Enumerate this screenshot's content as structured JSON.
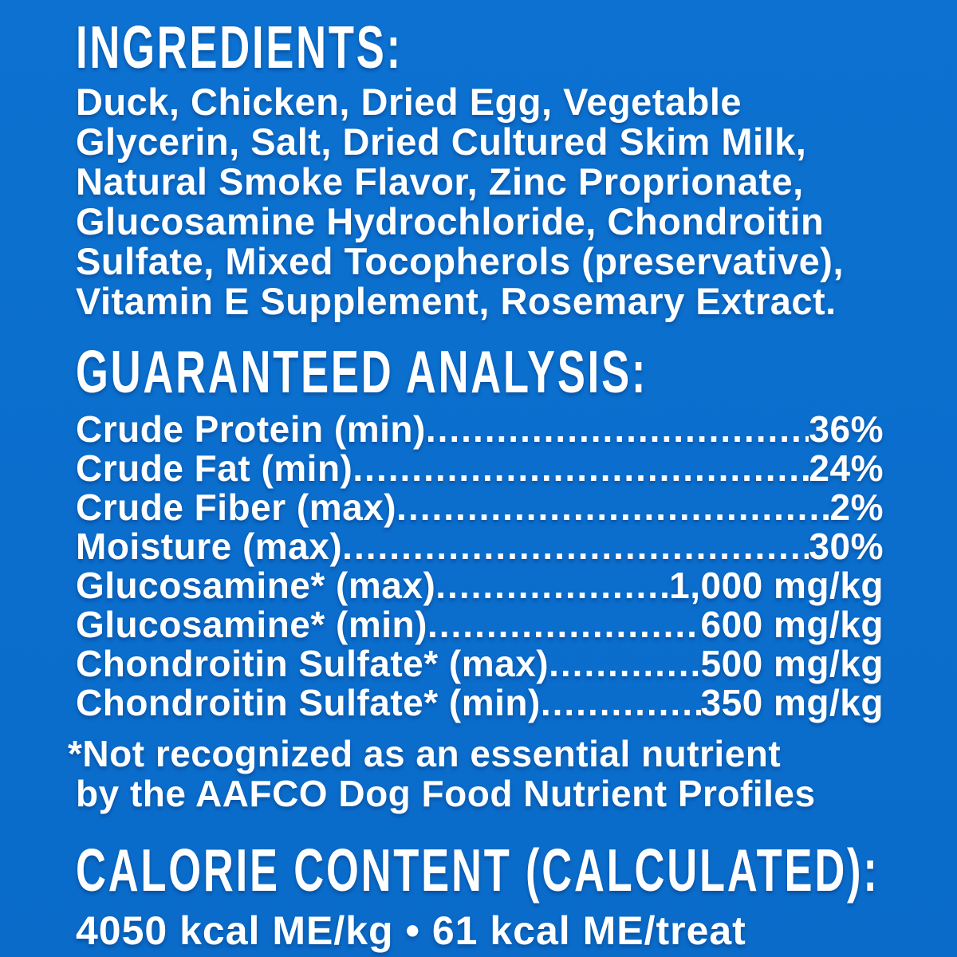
{
  "page": {
    "background_color": "#0b6ecd",
    "text_color": "#ffffff"
  },
  "ingredients": {
    "heading": "INGREDIENTS:",
    "lines": [
      "Duck, Chicken, Dried Egg, Vegetable",
      "Glycerin, Salt, Dried Cultured Skim Milk,",
      "Natural Smoke Flavor, Zinc Proprionate,",
      "Glucosamine Hydrochloride, Chondroitin",
      "Sulfate, Mixed Tocopherols (preservative),",
      "Vitamin E Supplement, Rosemary Extract."
    ]
  },
  "guaranteed_analysis": {
    "heading": "GUARANTEED ANALYSIS:",
    "rows": [
      {
        "label": "Crude Protein (min)",
        "value": "36%"
      },
      {
        "label": "Crude Fat (min)",
        "value": "24%"
      },
      {
        "label": "Crude Fiber (max)",
        "value": "2%"
      },
      {
        "label": "Moisture (max)",
        "value": "30%"
      },
      {
        "label": "Glucosamine* (max)",
        "value": "1,000 mg/kg"
      },
      {
        "label": "Glucosamine* (min)",
        "value": "600 mg/kg"
      },
      {
        "label": "Chondroitin Sulfate* (max)",
        "value": "500 mg/kg"
      },
      {
        "label": "Chondroitin Sulfate* (min)",
        "value": "350 mg/kg"
      }
    ],
    "footnote_lines": [
      "*Not recognized as an essential nutrient",
      "by the AAFCO Dog Food Nutrient Profiles"
    ]
  },
  "calorie_content": {
    "heading": "CALORIE CONTENT (CALCULATED):",
    "value": "4050 kcal ME/kg • 61 kcal ME/treat"
  }
}
